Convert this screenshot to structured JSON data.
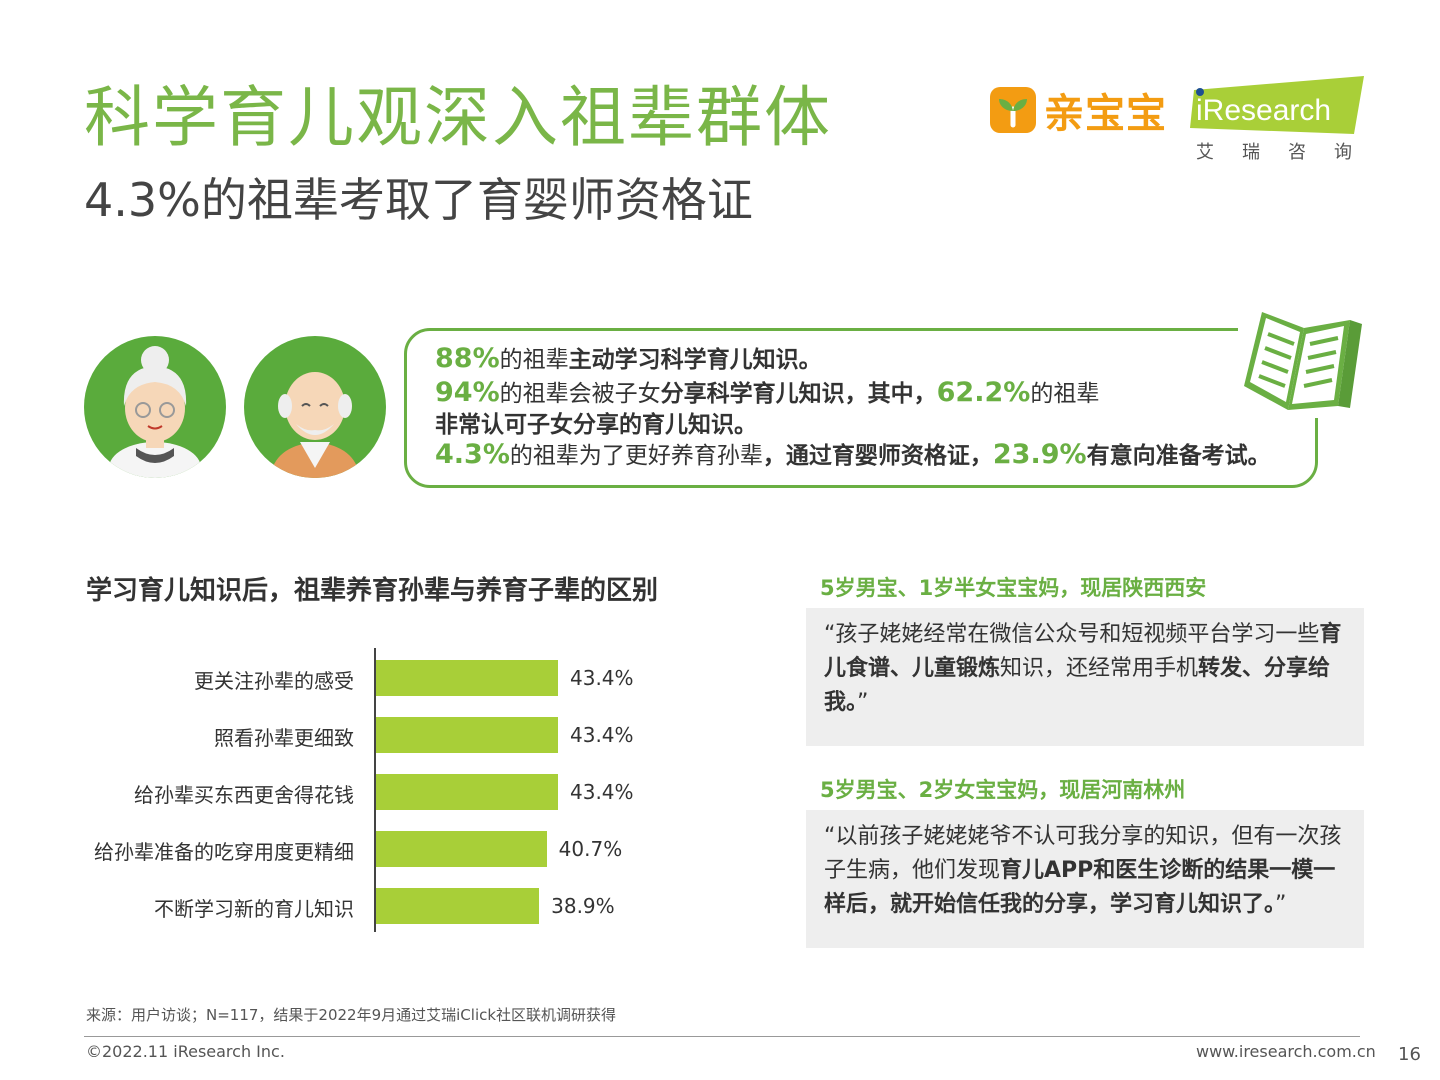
{
  "header": {
    "title": "科学育儿观深入祖辈群体",
    "subtitle": "4.3%的祖辈考取了育婴师资格证"
  },
  "logos": {
    "qinbaobao": "亲宝宝",
    "iresearch": "iResearch",
    "iresearch_cn": "艾瑞咨询"
  },
  "highlights": {
    "line1": {
      "pct": "88%",
      "t1": "的祖辈",
      "t2": "主动学习科学育儿知识。"
    },
    "line2": {
      "pct": "94%",
      "t1": "的祖辈会被子女",
      "t2": "分享科学育儿知识，其中，",
      "pct2": "62.2%",
      "t3": "的祖辈"
    },
    "line3": {
      "t1": "非常认可子女分享的育儿知识。"
    },
    "line4": {
      "pct": "4.3%",
      "t1": "的祖辈为了更好养育孙辈",
      "t2": "，通过育婴师资格证，",
      "pct2": "23.9%",
      "t3": "有意向准备考试。"
    }
  },
  "chart_data": {
    "type": "bar",
    "orientation": "horizontal",
    "title": "学习育儿知识后，祖辈养育孙辈与养育子辈的区别",
    "categories": [
      "更关注孙辈的感受",
      "照看孙辈更细致",
      "给孙辈买东西更舍得花钱",
      "给孙辈准备的吃穿用度更精细",
      "不断学习新的育儿知识"
    ],
    "values": [
      43.4,
      43.4,
      43.4,
      40.7,
      38.9
    ],
    "labels": [
      "43.4%",
      "43.4%",
      "43.4%",
      "40.7%",
      "38.9%"
    ],
    "unit": "%",
    "color": "#a8cf38"
  },
  "quotes": [
    {
      "head": "5岁男宝、1岁半女宝宝妈，现居陕西西安",
      "parts": [
        {
          "t": "“孩子姥姥经常在微信公众号和短视频平台学习一些",
          "b": false
        },
        {
          "t": "育儿食谱、儿童锻炼",
          "b": true
        },
        {
          "t": "知识，还经常用手机",
          "b": false
        },
        {
          "t": "转发、分享给我。",
          "b": true
        },
        {
          "t": "”",
          "b": false
        }
      ]
    },
    {
      "head": "5岁男宝、2岁女宝宝妈，现居河南林州",
      "parts": [
        {
          "t": "“以前孩子姥姥姥爷不认可我分享的知识，但有一次孩子生病，他们发现",
          "b": false
        },
        {
          "t": "育儿APP和医生诊断的结果一模一样后，就开始信任我的分享，学习育儿知识了。",
          "b": true
        },
        {
          "t": "”",
          "b": false
        }
      ]
    }
  ],
  "footer": {
    "source": "来源：用户访谈；N=117，结果于2022年9月通过艾瑞iClick社区联机调研获得",
    "copyright": "©2022.11 iResearch Inc.",
    "website": "www.iresearch.com.cn",
    "page": "16"
  }
}
